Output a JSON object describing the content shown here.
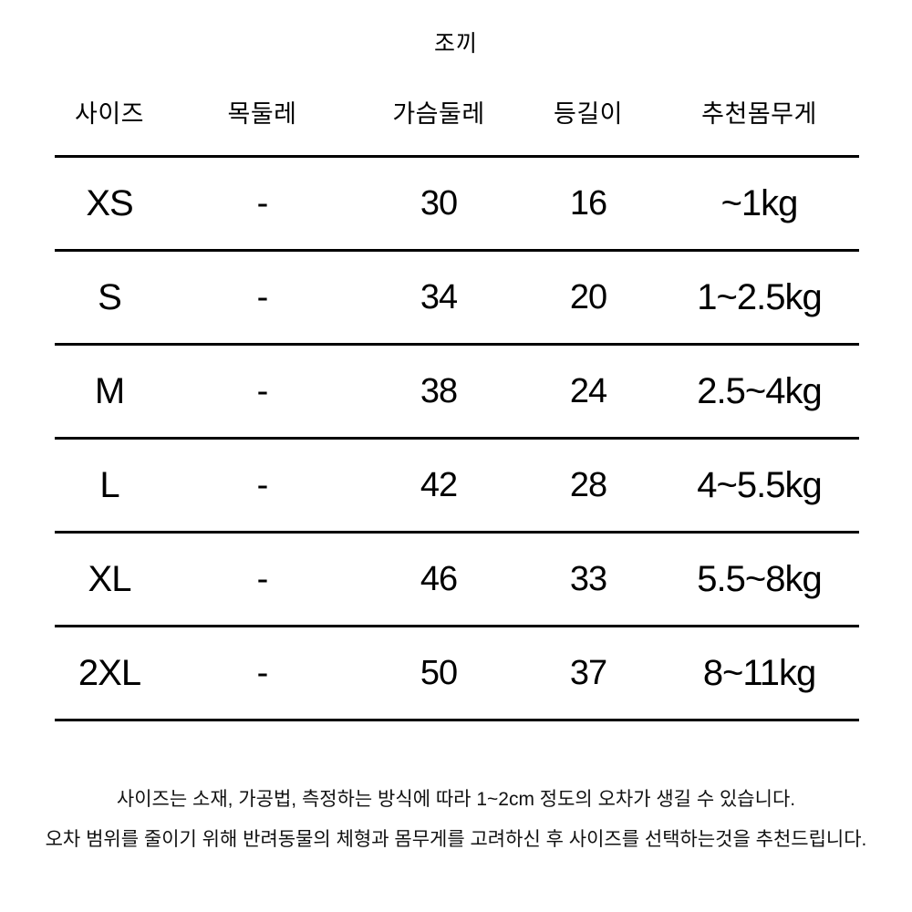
{
  "title": "조끼",
  "table": {
    "headers": [
      "사이즈",
      "목둘레",
      "가슴둘레",
      "등길이",
      "추천몸무게"
    ],
    "rows": [
      [
        "XS",
        "-",
        "30",
        "16",
        "~1kg"
      ],
      [
        "S",
        "-",
        "34",
        "20",
        "1~2.5kg"
      ],
      [
        "M",
        "-",
        "38",
        "24",
        "2.5~4kg"
      ],
      [
        "L",
        "-",
        "42",
        "28",
        "4~5.5kg"
      ],
      [
        "XL",
        "-",
        "46",
        "33",
        "5.5~8kg"
      ],
      [
        "2XL",
        "-",
        "50",
        "37",
        "8~11kg"
      ]
    ]
  },
  "footnote": {
    "line1": "사이즈는 소재, 가공법, 측정하는 방식에 따라 1~2cm 정도의 오차가 생길 수 있습니다.",
    "line2": "오차 범위를 줄이기 위해 반려동물의 체형과 몸무게를 고려하신 후 사이즈를 선택하는것을 추천드립니다."
  },
  "colors": {
    "background": "#ffffff",
    "text": "#000000",
    "rule": "#000000"
  }
}
